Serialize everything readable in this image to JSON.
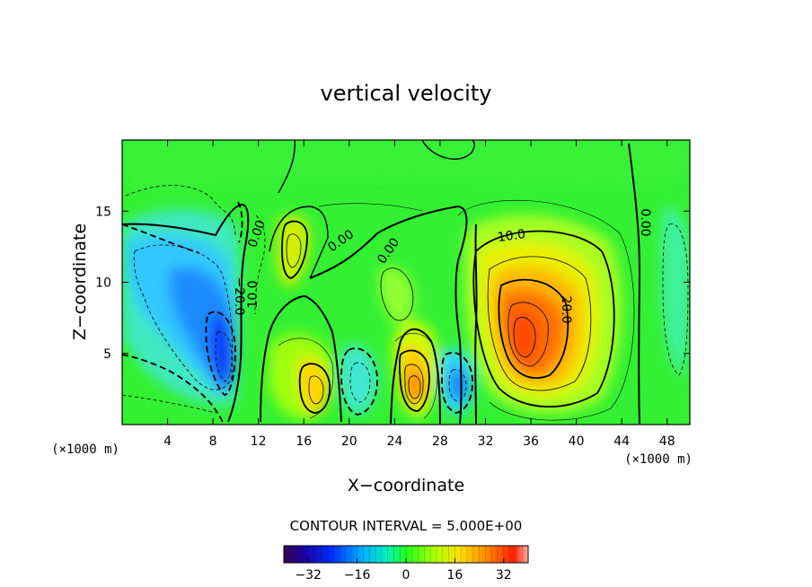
{
  "chart_data": {
    "type": "heatmap",
    "title": "vertical velocity",
    "xlabel": "X−coordinate",
    "ylabel": "Z−coordinate",
    "x_unit": "(×1000 m)",
    "z_unit": "(×1000 m)",
    "xlim": [
      0,
      50
    ],
    "ylim": [
      0,
      20
    ],
    "x_ticks": [
      4,
      8,
      12,
      16,
      20,
      24,
      28,
      32,
      36,
      40,
      44,
      48
    ],
    "y_ticks": [
      5,
      10,
      15
    ],
    "contour_interval_text": "CONTOUR INTERVAL = 5.000E+00",
    "contour_labels": [
      "0.00",
      "0.00",
      "0.00",
      "0.00",
      "10.0",
      "10.0",
      "20.0",
      "−20.0"
    ],
    "colorbar": {
      "range": [
        -40,
        40
      ],
      "ticks": [
        "−32",
        "−16",
        "0",
        "16",
        "32"
      ],
      "tick_values": [
        -32,
        -16,
        0,
        16,
        32
      ]
    },
    "features": [
      {
        "x": 9.5,
        "z": 5.5,
        "value": -24
      },
      {
        "x": 35.5,
        "z": 6.5,
        "value": 30
      },
      {
        "x": 26,
        "z": 2.5,
        "value": 26
      },
      {
        "x": 17.5,
        "z": 3,
        "value": 18
      },
      {
        "x": 30.5,
        "z": 2.8,
        "value": -16
      },
      {
        "x": 15,
        "z": 13,
        "value": 12
      },
      {
        "x": 4,
        "z": 9,
        "value": -12
      }
    ]
  }
}
